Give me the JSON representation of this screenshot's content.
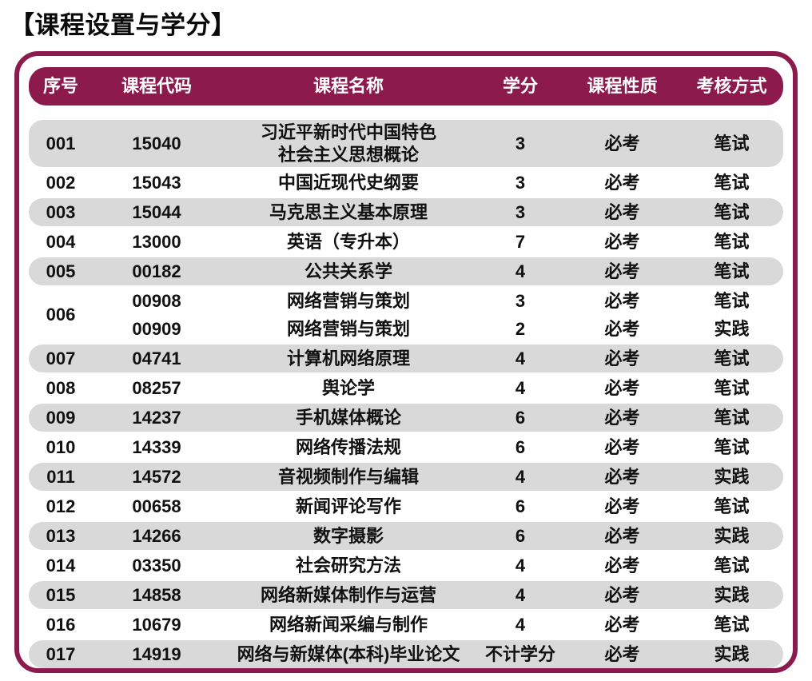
{
  "page": {
    "title": "【课程设置与学分】"
  },
  "colors": {
    "accent": "#8D1A4D",
    "row_stripe": "#D9D9D9",
    "header_text": "#FFFFFF",
    "body_text": "#111111"
  },
  "table": {
    "header": [
      "序号",
      "课程代码",
      "课程名称",
      "学分",
      "课程性质",
      "考核方式"
    ],
    "rows": [
      {
        "no": "001",
        "shaded": true,
        "entries": [
          {
            "code": "15040",
            "name": "习近平新时代中国特色\n社会主义思想概论",
            "credits": "3",
            "nature": "必考",
            "method": "笔试"
          }
        ]
      },
      {
        "no": "002",
        "shaded": false,
        "entries": [
          {
            "code": "15043",
            "name": "中国近现代史纲要",
            "credits": "3",
            "nature": "必考",
            "method": "笔试"
          }
        ]
      },
      {
        "no": "003",
        "shaded": true,
        "entries": [
          {
            "code": "15044",
            "name": "马克思主义基本原理",
            "credits": "3",
            "nature": "必考",
            "method": "笔试"
          }
        ]
      },
      {
        "no": "004",
        "shaded": false,
        "entries": [
          {
            "code": "13000",
            "name": "英语（专升本）",
            "credits": "7",
            "nature": "必考",
            "method": "笔试"
          }
        ]
      },
      {
        "no": "005",
        "shaded": true,
        "entries": [
          {
            "code": "00182",
            "name": "公共关系学",
            "credits": "4",
            "nature": "必考",
            "method": "笔试"
          }
        ]
      },
      {
        "no": "006",
        "shaded": false,
        "entries": [
          {
            "code": "00908",
            "name": "网络营销与策划",
            "credits": "3",
            "nature": "必考",
            "method": "笔试"
          },
          {
            "code": "00909",
            "name": "网络营销与策划",
            "credits": "2",
            "nature": "必考",
            "method": "实践"
          }
        ]
      },
      {
        "no": "007",
        "shaded": true,
        "entries": [
          {
            "code": "04741",
            "name": "计算机网络原理",
            "credits": "4",
            "nature": "必考",
            "method": "笔试"
          }
        ]
      },
      {
        "no": "008",
        "shaded": false,
        "entries": [
          {
            "code": "08257",
            "name": "舆论学",
            "credits": "4",
            "nature": "必考",
            "method": "笔试"
          }
        ]
      },
      {
        "no": "009",
        "shaded": true,
        "entries": [
          {
            "code": "14237",
            "name": "手机媒体概论",
            "credits": "6",
            "nature": "必考",
            "method": "笔试"
          }
        ]
      },
      {
        "no": "010",
        "shaded": false,
        "entries": [
          {
            "code": "14339",
            "name": "网络传播法规",
            "credits": "6",
            "nature": "必考",
            "method": "笔试"
          }
        ]
      },
      {
        "no": "011",
        "shaded": true,
        "entries": [
          {
            "code": "14572",
            "name": "音视频制作与编辑",
            "credits": "4",
            "nature": "必考",
            "method": "实践"
          }
        ]
      },
      {
        "no": "012",
        "shaded": false,
        "entries": [
          {
            "code": "00658",
            "name": "新闻评论写作",
            "credits": "6",
            "nature": "必考",
            "method": "笔试"
          }
        ]
      },
      {
        "no": "013",
        "shaded": true,
        "entries": [
          {
            "code": "14266",
            "name": "数字摄影",
            "credits": "6",
            "nature": "必考",
            "method": "实践"
          }
        ]
      },
      {
        "no": "014",
        "shaded": false,
        "entries": [
          {
            "code": "03350",
            "name": "社会研究方法",
            "credits": "4",
            "nature": "必考",
            "method": "笔试"
          }
        ]
      },
      {
        "no": "015",
        "shaded": true,
        "entries": [
          {
            "code": "14858",
            "name": "网络新媒体制作与运营",
            "credits": "4",
            "nature": "必考",
            "method": "实践"
          }
        ]
      },
      {
        "no": "016",
        "shaded": false,
        "entries": [
          {
            "code": "10679",
            "name": "网络新闻采编与制作",
            "credits": "4",
            "nature": "必考",
            "method": "笔试"
          }
        ]
      },
      {
        "no": "017",
        "shaded": true,
        "entries": [
          {
            "code": "14919",
            "name": "网络与新媒体(本科)毕业论文",
            "credits": "不计学分",
            "nature": "必考",
            "method": "实践"
          }
        ]
      }
    ]
  }
}
